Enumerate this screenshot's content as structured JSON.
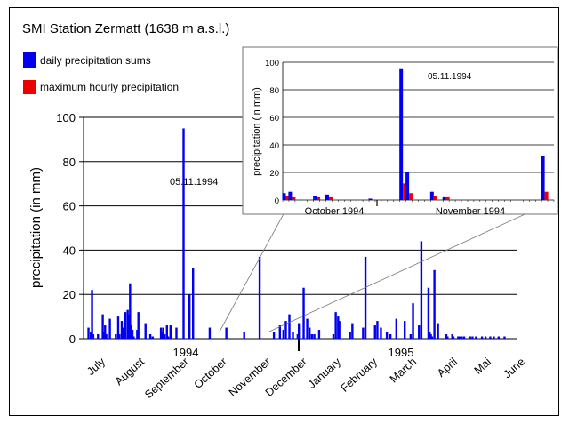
{
  "chart_data": [
    {
      "type": "bar",
      "title": "SMI Station Zermatt (1638 m a.s.l.)",
      "ylabel": "precipitation (in mm)",
      "ylim": [
        0,
        100
      ],
      "yticks": [
        0,
        20,
        40,
        60,
        80,
        100
      ],
      "grid": true,
      "legend": {
        "placement": "top-left",
        "entries": [
          {
            "label": "daily precipitation sums",
            "color": "#0000ee"
          },
          {
            "label": "maximum hourly precipitation",
            "color": "#ee0000"
          }
        ]
      },
      "x_tick_labels": [
        "July",
        "August",
        "September",
        "October",
        "November",
        "December",
        "January",
        "February",
        "March",
        "April",
        "Mai",
        "June"
      ],
      "year_labels": [
        "1994",
        "1995"
      ],
      "annotations": [
        "05.11.1994"
      ],
      "series": [
        {
          "name": "daily precipitation sums",
          "color": "#0000ee",
          "x": [
            4,
            6,
            7,
            8,
            12,
            16,
            17,
            18,
            19,
            22,
            27,
            29,
            30,
            32,
            33,
            35,
            37,
            38,
            39,
            40,
            41,
            42,
            45,
            46,
            52,
            56,
            58,
            65,
            66,
            67,
            68,
            70,
            71,
            73,
            78,
            84,
            89,
            92,
            106,
            120,
            135,
            148,
            160,
            165,
            168,
            170,
            173,
            176,
            180,
            181,
            185,
            188,
            190,
            192,
            194,
            198,
            210,
            212,
            214,
            215,
            224,
            226,
            235,
            237,
            245,
            247,
            250,
            255,
            258,
            263,
            270,
            275,
            277,
            282,
            284,
            290,
            291,
            292,
            293,
            295,
            298,
            305,
            306,
            310,
            311,
            315,
            316,
            317,
            318,
            320,
            325,
            327,
            330,
            335,
            338,
            342,
            345,
            349,
            354
          ],
          "y": [
            5,
            3,
            22,
            2,
            2,
            11,
            3,
            6,
            2,
            9,
            2,
            10,
            2,
            8,
            5,
            12,
            13,
            11,
            25,
            6,
            4,
            1,
            4,
            12,
            7,
            2,
            1,
            5,
            3,
            5,
            2,
            6,
            1,
            6,
            5,
            95,
            20,
            32,
            5,
            5,
            3,
            37,
            3,
            6,
            4,
            8,
            11,
            3,
            2,
            7,
            23,
            9,
            5,
            2,
            2,
            4,
            2,
            12,
            10,
            8,
            3,
            7,
            5,
            37,
            6,
            8,
            5,
            3,
            2,
            9,
            8,
            2,
            16,
            6,
            44,
            23,
            3,
            2,
            1,
            31,
            7,
            2,
            1,
            2,
            1,
            1,
            1,
            1,
            1,
            1,
            1,
            1,
            1,
            1,
            1,
            1,
            1,
            1,
            1
          ]
        }
      ],
      "x_range": [
        0,
        365
      ]
    },
    {
      "type": "bar",
      "ylabel": "precipitation (in mm)",
      "ylim": [
        0,
        100
      ],
      "yticks": [
        0,
        20,
        40,
        60,
        80,
        100
      ],
      "grid": true,
      "x_tick_labels": [
        "October 1994",
        "November 1994"
      ],
      "annotations": [
        "05.11.1994"
      ],
      "categories": [
        "1",
        "2",
        "3",
        "4",
        "5",
        "6",
        "7",
        "8",
        "9",
        "10",
        "11",
        "12",
        "13",
        "14",
        "15",
        "16",
        "17",
        "18",
        "19",
        "20",
        "21",
        "22",
        "23",
        "24",
        "25",
        "26",
        "27",
        "28",
        "29",
        "30",
        "31",
        "32",
        "33",
        "34",
        "35",
        "36",
        "37",
        "38",
        "39",
        "40",
        "41",
        "42",
        "43",
        "44"
      ],
      "series": [
        {
          "name": "daily precipitation sums",
          "color": "#0000ee",
          "values": [
            5,
            6,
            0,
            0,
            0,
            3,
            0,
            4,
            0,
            0,
            0,
            0,
            0,
            0,
            1,
            0,
            0,
            0,
            0,
            95,
            20,
            0,
            0,
            0,
            6,
            0,
            2,
            0,
            0,
            0,
            0,
            0,
            0,
            0,
            0,
            0,
            0,
            0,
            0,
            0,
            0,
            0,
            32,
            0
          ]
        },
        {
          "name": "maximum hourly precipitation",
          "color": "#ee0000",
          "values": [
            3,
            2,
            0,
            0,
            0,
            2,
            0,
            2,
            0,
            0,
            0,
            0,
            0,
            0,
            0,
            0,
            0,
            0,
            0,
            12,
            5,
            0,
            0,
            0,
            3,
            0,
            2,
            0,
            0,
            0,
            0,
            0,
            0,
            0,
            0,
            0,
            0,
            0,
            0,
            0,
            0,
            0,
            6,
            0
          ]
        }
      ]
    }
  ]
}
